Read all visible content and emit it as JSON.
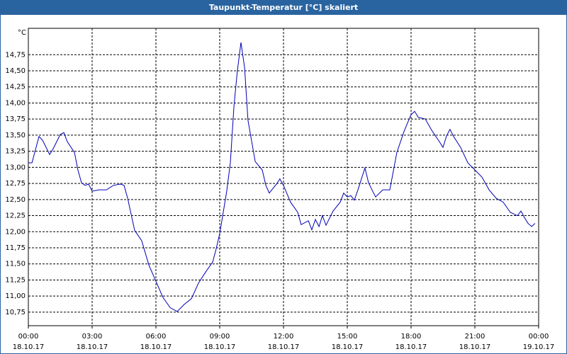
{
  "chart_data": {
    "type": "line",
    "title": "Taupunkt-Temperatur [°C] skaliert",
    "y_unit": "°C",
    "x": [
      0,
      0.17,
      0.5,
      0.67,
      1,
      1.17,
      1.5,
      1.67,
      1.83,
      2.17,
      2.33,
      2.5,
      2.67,
      2.83,
      3,
      3.33,
      3.67,
      4,
      4.33,
      4.5,
      4.67,
      5,
      5.33,
      5.67,
      6,
      6.33,
      6.67,
      7,
      7.33,
      7.67,
      8,
      8.33,
      8.67,
      8.83,
      9,
      9.33,
      9.5,
      9.67,
      9.83,
      10,
      10.17,
      10.33,
      10.67,
      11,
      11.17,
      11.33,
      11.67,
      11.83,
      12,
      12.33,
      12.67,
      12.83,
      13.17,
      13.33,
      13.5,
      13.67,
      13.83,
      14,
      14.33,
      14.67,
      14.83,
      15,
      15.17,
      15.33,
      15.5,
      15.83,
      16,
      16.33,
      16.67,
      17,
      17.33,
      17.67,
      18,
      18.17,
      18.33,
      18.67,
      19,
      19.33,
      19.5,
      19.67,
      19.83,
      20,
      20.33,
      20.67,
      21,
      21.33,
      21.67,
      22,
      22.33,
      22.67,
      23,
      23.17,
      23.33,
      23.5,
      23.67,
      23.83
    ],
    "series": [
      {
        "name": "Taupunkt",
        "color": "#0000b4",
        "values": [
          13.07,
          13.07,
          13.48,
          13.42,
          13.2,
          13.29,
          13.51,
          13.54,
          13.4,
          13.23,
          12.96,
          12.76,
          12.72,
          12.74,
          12.63,
          12.65,
          12.65,
          12.72,
          12.74,
          12.72,
          12.52,
          12.02,
          11.86,
          11.48,
          11.23,
          10.98,
          10.82,
          10.76,
          10.87,
          10.96,
          11.2,
          11.37,
          11.53,
          11.73,
          11.97,
          12.63,
          13.07,
          13.95,
          14.5,
          14.94,
          14.55,
          13.73,
          13.09,
          12.96,
          12.72,
          12.6,
          12.74,
          12.82,
          12.72,
          12.46,
          12.3,
          12.11,
          12.17,
          12.03,
          12.19,
          12.08,
          12.25,
          12.1,
          12.32,
          12.46,
          12.6,
          12.54,
          12.56,
          12.49,
          12.65,
          12.99,
          12.76,
          12.54,
          12.65,
          12.65,
          13.23,
          13.56,
          13.82,
          13.87,
          13.78,
          13.75,
          13.56,
          13.4,
          13.31,
          13.49,
          13.59,
          13.48,
          13.31,
          13.07,
          12.96,
          12.85,
          12.65,
          12.52,
          12.46,
          12.3,
          12.25,
          12.32,
          12.22,
          12.13,
          12.08,
          12.13
        ]
      }
    ],
    "xlim": [
      0,
      24
    ],
    "xticks": [
      {
        "value": 0,
        "label": "00:00"
      },
      {
        "value": 3,
        "label": "03:00"
      },
      {
        "value": 6,
        "label": "06:00"
      },
      {
        "value": 9,
        "label": "09:00"
      },
      {
        "value": 12,
        "label": "12:00"
      },
      {
        "value": 15,
        "label": "15:00"
      },
      {
        "value": 18,
        "label": "18:00"
      },
      {
        "value": 21,
        "label": "21:00"
      },
      {
        "value": 24,
        "label": "00:00"
      }
    ],
    "xtick_dates": [
      "18.10.17",
      "18.10.17",
      "18.10.17",
      "18.10.17",
      "18.10.17",
      "18.10.17",
      "18.10.17",
      "18.10.17",
      "19.10.17"
    ],
    "ylim": [
      10.54,
      15.16
    ],
    "yticks": [
      {
        "value": 10.75,
        "label": "10,75"
      },
      {
        "value": 11,
        "label": "11,00"
      },
      {
        "value": 11.25,
        "label": "11,25"
      },
      {
        "value": 11.5,
        "label": "11,50"
      },
      {
        "value": 11.75,
        "label": "11,75"
      },
      {
        "value": 12,
        "label": "12,00"
      },
      {
        "value": 12.25,
        "label": "12,25"
      },
      {
        "value": 12.5,
        "label": "12,50"
      },
      {
        "value": 12.75,
        "label": "12,75"
      },
      {
        "value": 13,
        "label": "13,00"
      },
      {
        "value": 13.25,
        "label": "13,25"
      },
      {
        "value": 13.5,
        "label": "13,50"
      },
      {
        "value": 13.75,
        "label": "13,75"
      },
      {
        "value": 14,
        "label": "14,00"
      },
      {
        "value": 14.25,
        "label": "14,25"
      },
      {
        "value": 14.5,
        "label": "14,50"
      },
      {
        "value": 14.75,
        "label": "14,75"
      }
    ],
    "grid": true
  }
}
